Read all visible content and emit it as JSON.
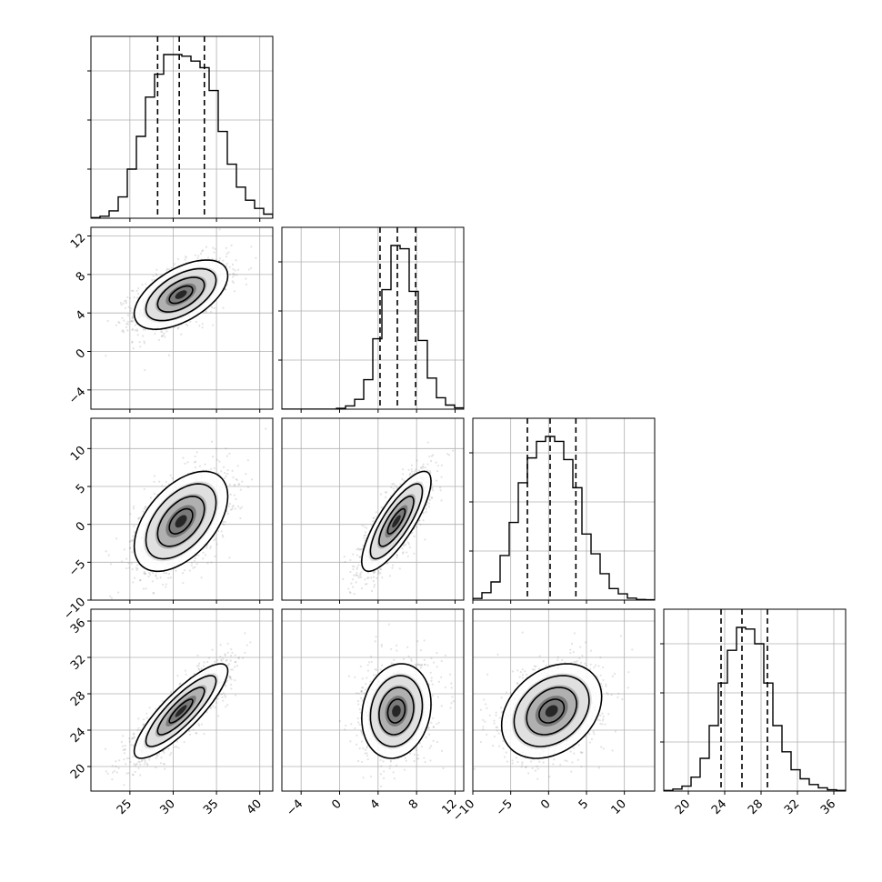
{
  "chart_data": {
    "type": "scatter",
    "subtype": "corner-plot",
    "n_params": 4,
    "style": {
      "grid": true,
      "hist_color": "#000000",
      "point_color": "#7f7f7f",
      "contour_color": "#000000",
      "quantile_line": "dashed"
    },
    "params": [
      {
        "range": [
          20.5,
          41.5
        ],
        "ticks": [
          25,
          30,
          35,
          40
        ],
        "tick_labels": [
          "25",
          "30",
          "35",
          "40"
        ],
        "mean": 30.9,
        "sd": 2.7,
        "quantiles": [
          28.2,
          30.7,
          33.6
        ],
        "hist_edges": [
          20.5,
          21.55,
          22.6,
          23.65,
          24.7,
          25.75,
          26.8,
          27.85,
          28.9,
          29.95,
          31.0,
          32.05,
          33.1,
          34.15,
          35.2,
          36.25,
          37.3,
          38.35,
          39.4,
          40.45,
          41.5
        ],
        "hist_counts": [
          4,
          12,
          45,
          130,
          300,
          500,
          740,
          880,
          1000,
          1000,
          990,
          960,
          920,
          780,
          530,
          330,
          190,
          110,
          60,
          25
        ]
      },
      {
        "range": [
          -6,
          12.9
        ],
        "ticks": [
          -4,
          0,
          4,
          8,
          12
        ],
        "tick_labels": [
          "−4",
          "0",
          "4",
          "8",
          "12"
        ],
        "mean": 5.9,
        "sd": 1.8,
        "quantiles": [
          4.2,
          6.0,
          7.9
        ],
        "hist_edges": [
          -6.0,
          -5.055,
          -4.11,
          -3.165,
          -2.22,
          -1.275,
          -0.33,
          0.615,
          1.56,
          2.505,
          3.45,
          4.395,
          5.34,
          6.285,
          7.23,
          8.175,
          9.12,
          10.065,
          11.01,
          11.955,
          12.9
        ],
        "hist_counts": [
          0,
          0,
          0,
          0,
          0,
          0,
          5,
          20,
          60,
          180,
          430,
          730,
          1000,
          980,
          720,
          420,
          190,
          70,
          25,
          8
        ]
      },
      {
        "range": [
          -10,
          14
        ],
        "ticks": [
          -10,
          -5,
          0,
          5,
          10
        ],
        "tick_labels": [
          "−10",
          "−5",
          "0",
          "5",
          "10"
        ],
        "mean": 0.4,
        "sd": 3.3,
        "quantiles": [
          -2.8,
          0.2,
          3.6
        ],
        "hist_edges": [
          -10.0,
          -8.8,
          -7.6,
          -6.4,
          -5.2,
          -4.0,
          -2.8,
          -1.6,
          -0.4,
          0.8,
          2.0,
          3.2,
          4.4,
          5.6,
          6.8,
          8.0,
          9.2,
          10.4,
          11.6,
          12.8,
          14.0
        ],
        "hist_counts": [
          10,
          45,
          110,
          270,
          470,
          710,
          860,
          960,
          990,
          960,
          850,
          680,
          400,
          280,
          160,
          70,
          38,
          12,
          4,
          2
        ]
      },
      {
        "range": [
          17.3,
          37.3
        ],
        "ticks": [
          20,
          24,
          28,
          32,
          36
        ],
        "tick_labels": [
          "20",
          "24",
          "28",
          "32",
          "36"
        ],
        "mean": 26.1,
        "sd": 2.6,
        "quantiles": [
          23.6,
          25.9,
          28.7
        ],
        "hist_edges": [
          17.3,
          18.3,
          19.3,
          20.3,
          21.3,
          22.3,
          23.3,
          24.3,
          25.3,
          26.3,
          27.3,
          28.3,
          29.3,
          30.3,
          31.3,
          32.3,
          33.3,
          34.3,
          35.3,
          36.3,
          37.3
        ],
        "hist_counts": [
          4,
          12,
          30,
          85,
          200,
          400,
          660,
          860,
          1000,
          990,
          900,
          660,
          400,
          240,
          130,
          75,
          40,
          20,
          8,
          4
        ]
      }
    ],
    "correlations": [
      [
        1,
        0.55,
        0.5,
        0.85
      ],
      [
        0.55,
        1,
        0.8,
        0.15
      ],
      [
        0.5,
        0.8,
        1,
        0.3
      ],
      [
        0.85,
        0.15,
        0.3,
        1
      ]
    ]
  }
}
